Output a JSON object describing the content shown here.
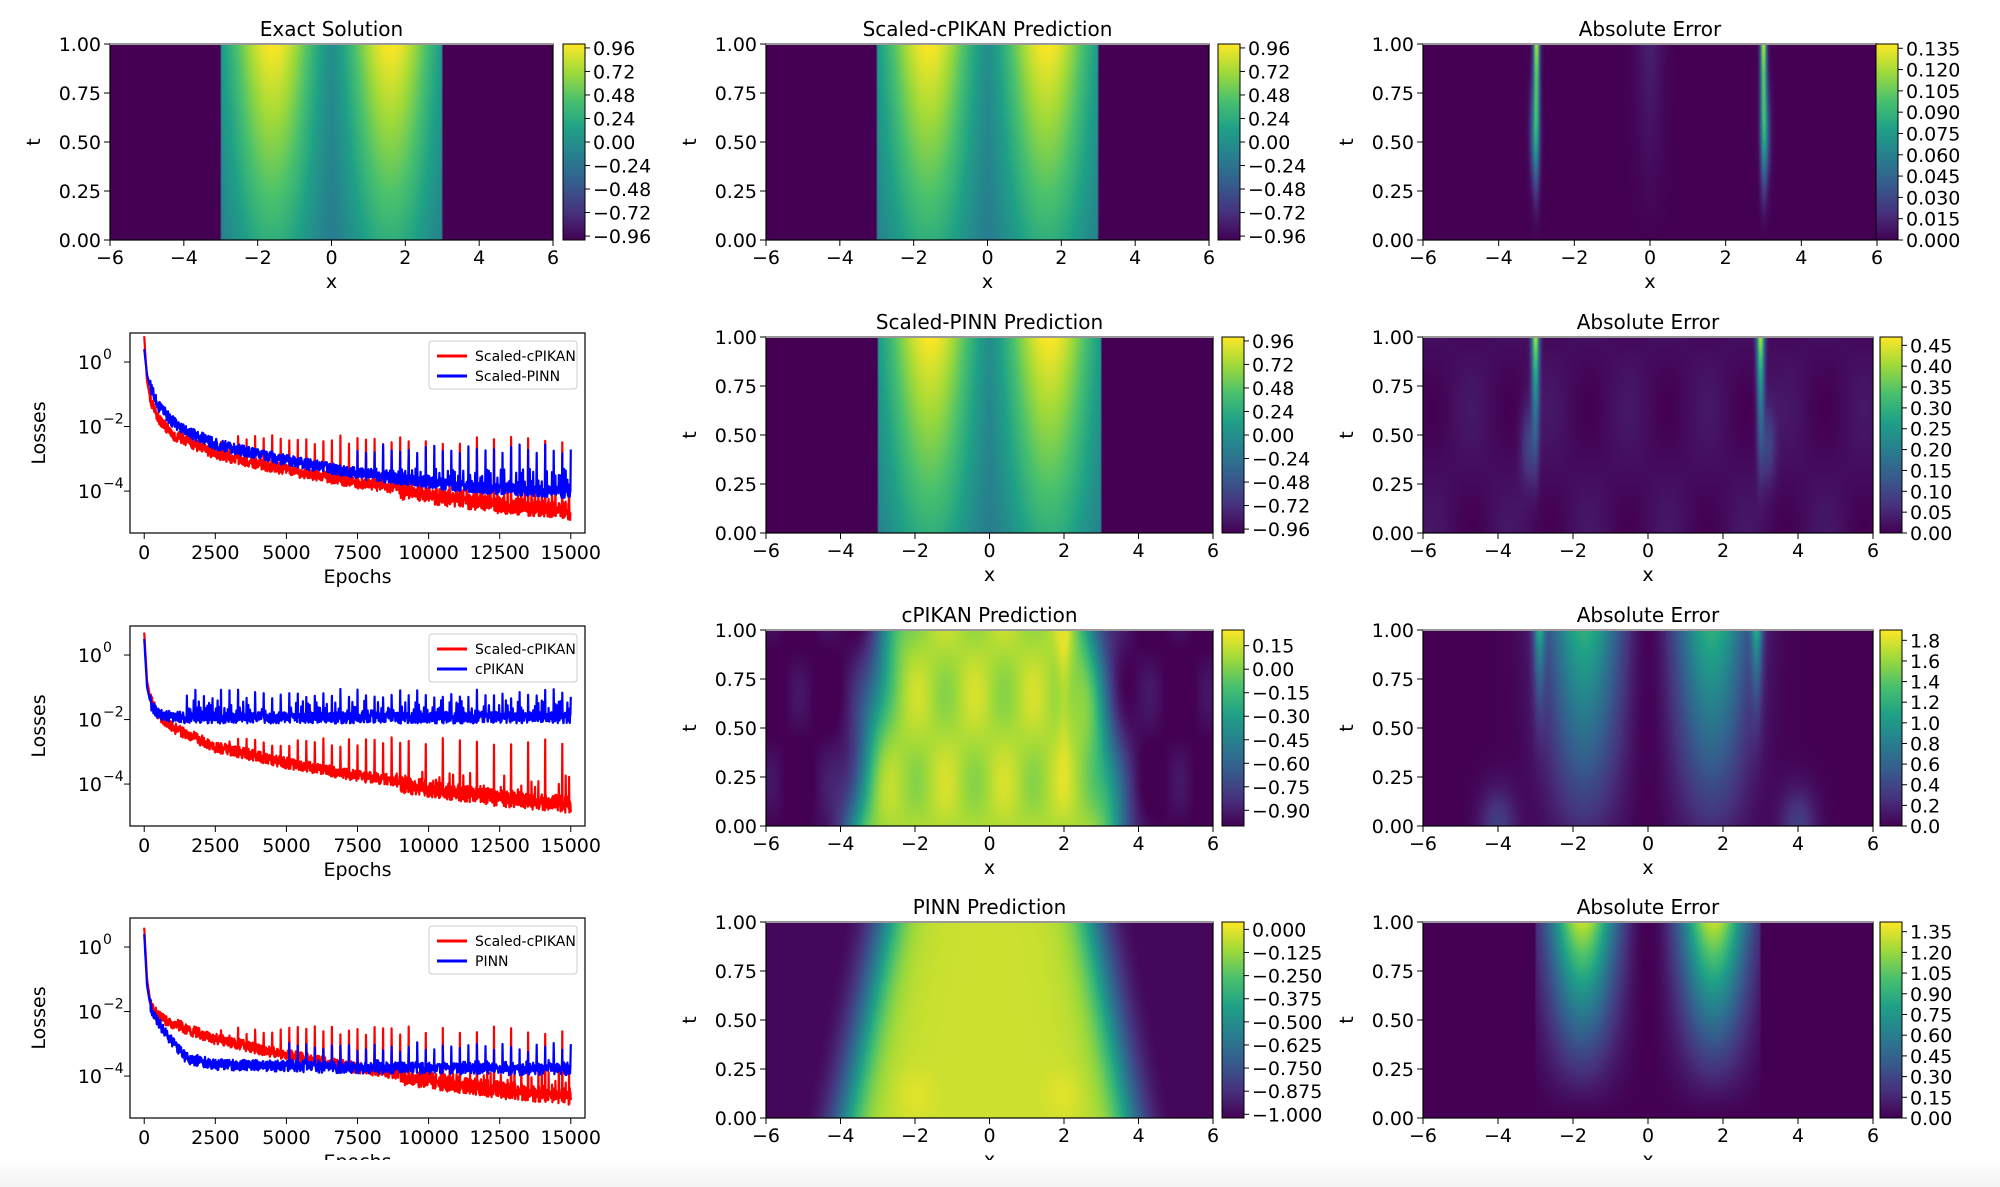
{
  "figure": {
    "colormap_stops": [
      "#440154",
      "#46327e",
      "#365c8d",
      "#277f8e",
      "#1fa187",
      "#4ac16d",
      "#a0da39",
      "#fde725"
    ]
  },
  "chart_data": [
    {
      "type": "heatmap",
      "title": "Exact Solution",
      "xlabel": "x",
      "ylabel": "t",
      "xlim": [
        -6,
        6
      ],
      "ylim": [
        0,
        1
      ],
      "xticks": [
        "−6",
        "−4",
        "−2",
        "0",
        "2",
        "4",
        "6"
      ],
      "yticks": [
        "0.00",
        "0.25",
        "0.50",
        "0.75",
        "1.00"
      ],
      "field": "solution",
      "colorbar": {
        "min": -1.0,
        "max": 1.0,
        "ticks": [
          "0.96",
          "0.72",
          "0.48",
          "0.24",
          "0.00",
          "−0.24",
          "−0.48",
          "−0.72",
          "−0.96"
        ],
        "tick_values": [
          0.96,
          0.72,
          0.48,
          0.24,
          0.0,
          -0.24,
          -0.48,
          -0.72,
          -0.96
        ]
      }
    },
    {
      "type": "heatmap",
      "title": "Scaled-cPIKAN Prediction",
      "xlabel": "x",
      "ylabel": "t",
      "xlim": [
        -6,
        6
      ],
      "ylim": [
        0,
        1
      ],
      "xticks": [
        "−6",
        "−4",
        "−2",
        "0",
        "2",
        "4",
        "6"
      ],
      "yticks": [
        "0.00",
        "0.25",
        "0.50",
        "0.75",
        "1.00"
      ],
      "field": "solution",
      "colorbar": {
        "min": -1.0,
        "max": 1.0,
        "ticks": [
          "0.96",
          "0.72",
          "0.48",
          "0.24",
          "0.00",
          "−0.24",
          "−0.48",
          "−0.72",
          "−0.96"
        ],
        "tick_values": [
          0.96,
          0.72,
          0.48,
          0.24,
          0.0,
          -0.24,
          -0.48,
          -0.72,
          -0.96
        ]
      }
    },
    {
      "type": "heatmap",
      "title": "Absolute Error",
      "xlabel": "x",
      "ylabel": "t",
      "xlim": [
        -6,
        6
      ],
      "ylim": [
        0,
        1
      ],
      "xticks": [
        "−6",
        "−4",
        "−2",
        "0",
        "2",
        "4",
        "6"
      ],
      "yticks": [
        "0.00",
        "0.25",
        "0.50",
        "0.75",
        "1.00"
      ],
      "field": "error_scaled_cpikan",
      "colorbar": {
        "min": 0.0,
        "max": 0.138,
        "ticks": [
          "0.135",
          "0.120",
          "0.105",
          "0.090",
          "0.075",
          "0.060",
          "0.045",
          "0.030",
          "0.015",
          "0.000"
        ],
        "tick_values": [
          0.135,
          0.12,
          0.105,
          0.09,
          0.075,
          0.06,
          0.045,
          0.03,
          0.015,
          0.0
        ]
      }
    },
    {
      "type": "line",
      "title": "",
      "xlabel": "Epochs",
      "ylabel": "Losses",
      "yscale": "log",
      "xlim": [
        -500,
        15500
      ],
      "ylim_log10": [
        -5.3,
        0.9
      ],
      "xticks": [
        "0",
        "2500",
        "5000",
        "7500",
        "10000",
        "12500",
        "15000"
      ],
      "xtick_values": [
        0,
        2500,
        5000,
        7500,
        10000,
        12500,
        15000
      ],
      "yticks": [
        "10",
        "10",
        "10"
      ],
      "ytick_exponents": [
        "0",
        "−2",
        "−4"
      ],
      "ytick_values_log10": [
        0,
        -2,
        -4
      ],
      "legend": "top-right",
      "series": [
        {
          "name": "Scaled-cPIKAN",
          "color": "#ff0000",
          "floor_x": [
            0,
            100,
            250,
            500,
            1000,
            1500,
            2500,
            5000,
            7500,
            10000,
            12500,
            15000
          ],
          "floor_log10": [
            0.8,
            -0.6,
            -1.3,
            -1.8,
            -2.3,
            -2.5,
            -2.9,
            -3.4,
            -3.8,
            -4.1,
            -4.4,
            -4.6
          ],
          "spike_top_log10": -2.4,
          "spike_start": 2500,
          "noise_top_log10": -3.7
        },
        {
          "name": "Scaled-PINN",
          "color": "#0000ff",
          "floor_x": [
            0,
            100,
            250,
            500,
            1000,
            1500,
            2500,
            5000,
            7500,
            10000,
            12500,
            15000
          ],
          "floor_log10": [
            0.4,
            -0.4,
            -0.9,
            -1.4,
            -1.9,
            -2.2,
            -2.6,
            -3.1,
            -3.5,
            -3.8,
            -4.0,
            -4.1
          ],
          "spike_top_log10": -2.7,
          "spike_start": 7500,
          "noise_top_log10": -3.3
        }
      ]
    },
    {
      "type": "heatmap",
      "title": "Scaled-PINN Prediction",
      "xlabel": "x",
      "ylabel": "t",
      "xlim": [
        -6,
        6
      ],
      "ylim": [
        0,
        1
      ],
      "xticks": [
        "−6",
        "−4",
        "−2",
        "0",
        "2",
        "4",
        "6"
      ],
      "yticks": [
        "0.00",
        "0.25",
        "0.50",
        "0.75",
        "1.00"
      ],
      "field": "solution",
      "colorbar": {
        "min": -1.0,
        "max": 1.0,
        "ticks": [
          "0.96",
          "0.72",
          "0.48",
          "0.24",
          "0.00",
          "−0.24",
          "−0.48",
          "−0.72",
          "−0.96"
        ],
        "tick_values": [
          0.96,
          0.72,
          0.48,
          0.24,
          0.0,
          -0.24,
          -0.48,
          -0.72,
          -0.96
        ]
      }
    },
    {
      "type": "heatmap",
      "title": "Absolute Error",
      "xlabel": "x",
      "ylabel": "t",
      "xlim": [
        -6,
        6
      ],
      "ylim": [
        0,
        1
      ],
      "xticks": [
        "−6",
        "−4",
        "−2",
        "0",
        "2",
        "4",
        "6"
      ],
      "yticks": [
        "0.00",
        "0.25",
        "0.50",
        "0.75",
        "1.00"
      ],
      "field": "error_scaled_pinn",
      "colorbar": {
        "min": 0.0,
        "max": 0.47,
        "ticks": [
          "0.45",
          "0.40",
          "0.35",
          "0.30",
          "0.25",
          "0.20",
          "0.15",
          "0.10",
          "0.05",
          "0.00"
        ],
        "tick_values": [
          0.45,
          0.4,
          0.35,
          0.3,
          0.25,
          0.2,
          0.15,
          0.1,
          0.05,
          0.0
        ]
      }
    },
    {
      "type": "line",
      "title": "",
      "xlabel": "Epochs",
      "ylabel": "Losses",
      "yscale": "log",
      "xlim": [
        -500,
        15500
      ],
      "ylim_log10": [
        -5.3,
        0.9
      ],
      "xticks": [
        "0",
        "2500",
        "5000",
        "7500",
        "10000",
        "12500",
        "15000"
      ],
      "xtick_values": [
        0,
        2500,
        5000,
        7500,
        10000,
        12500,
        15000
      ],
      "yticks": [
        "10",
        "10",
        "10"
      ],
      "ytick_exponents": [
        "0",
        "−2",
        "−4"
      ],
      "ytick_values_log10": [
        0,
        -2,
        -4
      ],
      "legend": "top-right",
      "series": [
        {
          "name": "Scaled-cPIKAN",
          "color": "#ff0000",
          "floor_x": [
            0,
            100,
            250,
            500,
            1000,
            1500,
            2500,
            5000,
            7500,
            10000,
            12500,
            15000
          ],
          "floor_log10": [
            0.7,
            -0.8,
            -1.5,
            -1.9,
            -2.3,
            -2.5,
            -2.9,
            -3.4,
            -3.8,
            -4.1,
            -4.4,
            -4.6
          ],
          "spike_top_log10": -2.7,
          "spike_start": 2500,
          "noise_top_log10": -3.6
        },
        {
          "name": "cPIKAN",
          "color": "#0000ff",
          "floor_x": [
            0,
            100,
            250,
            500,
            1000,
            1500,
            2500,
            5000,
            7500,
            10000,
            12500,
            15000
          ],
          "floor_log10": [
            0.5,
            -1.0,
            -1.6,
            -1.9,
            -1.95,
            -2.0,
            -2.0,
            -2.0,
            -2.0,
            -2.0,
            -2.0,
            -2.0
          ],
          "spike_top_log10": -1.2,
          "spike_start": 1500,
          "noise_top_log10": -1.4
        }
      ]
    },
    {
      "type": "heatmap",
      "title": "cPIKAN Prediction",
      "xlabel": "x",
      "ylabel": "t",
      "xlim": [
        -6,
        6
      ],
      "ylim": [
        0,
        1
      ],
      "xticks": [
        "−6",
        "−4",
        "−2",
        "0",
        "2",
        "4",
        "6"
      ],
      "yticks": [
        "0.00",
        "0.25",
        "0.50",
        "0.75",
        "1.00"
      ],
      "field": "pred_cpikan",
      "colorbar": {
        "min": -1.0,
        "max": 0.25,
        "ticks": [
          "0.15",
          "0.00",
          "−0.15",
          "−0.30",
          "−0.45",
          "−0.60",
          "−0.75",
          "−0.90"
        ],
        "tick_values": [
          0.15,
          0.0,
          -0.15,
          -0.3,
          -0.45,
          -0.6,
          -0.75,
          -0.9
        ]
      }
    },
    {
      "type": "heatmap",
      "title": "Absolute Error",
      "xlabel": "x",
      "ylabel": "t",
      "xlim": [
        -6,
        6
      ],
      "ylim": [
        0,
        1
      ],
      "xticks": [
        "−6",
        "−4",
        "−2",
        "0",
        "2",
        "4",
        "6"
      ],
      "yticks": [
        "0.00",
        "0.25",
        "0.50",
        "0.75",
        "1.00"
      ],
      "field": "error_cpikan",
      "colorbar": {
        "min": 0.0,
        "max": 1.9,
        "ticks": [
          "1.8",
          "1.6",
          "1.4",
          "1.2",
          "1.0",
          "0.8",
          "0.6",
          "0.4",
          "0.2",
          "0.0"
        ],
        "tick_values": [
          1.8,
          1.6,
          1.4,
          1.2,
          1.0,
          0.8,
          0.6,
          0.4,
          0.2,
          0.0
        ]
      }
    },
    {
      "type": "line",
      "title": "",
      "xlabel": "Epochs",
      "ylabel": "Losses",
      "yscale": "log",
      "xlim": [
        -500,
        15500
      ],
      "ylim_log10": [
        -5.3,
        0.9
      ],
      "xticks": [
        "0",
        "2500",
        "5000",
        "7500",
        "10000",
        "12500",
        "15000"
      ],
      "xtick_values": [
        0,
        2500,
        5000,
        7500,
        10000,
        12500,
        15000
      ],
      "yticks": [
        "10",
        "10",
        "10"
      ],
      "ytick_exponents": [
        "0",
        "−2",
        "−4"
      ],
      "ytick_values_log10": [
        0,
        -2,
        -4
      ],
      "legend": "top-right",
      "series": [
        {
          "name": "Scaled-cPIKAN",
          "color": "#ff0000",
          "floor_x": [
            0,
            100,
            250,
            500,
            1000,
            1500,
            2500,
            5000,
            7500,
            10000,
            12500,
            15000
          ],
          "floor_log10": [
            0.6,
            -1.0,
            -1.9,
            -2.2,
            -2.4,
            -2.6,
            -2.9,
            -3.4,
            -3.8,
            -4.1,
            -4.4,
            -4.6
          ],
          "spike_top_log10": -2.6,
          "spike_start": 2500,
          "noise_top_log10": -3.7
        },
        {
          "name": "PINN",
          "color": "#0000ff",
          "floor_x": [
            0,
            100,
            250,
            500,
            1000,
            1500,
            2500,
            5000,
            7500,
            10000,
            12500,
            15000
          ],
          "floor_log10": [
            0.4,
            -1.2,
            -2.0,
            -2.4,
            -3.0,
            -3.5,
            -3.7,
            -3.75,
            -3.8,
            -3.8,
            -3.85,
            -3.85
          ],
          "spike_top_log10": -3.1,
          "spike_start": 5000,
          "noise_top_log10": -3.5
        }
      ]
    },
    {
      "type": "heatmap",
      "title": "PINN Prediction",
      "xlabel": "x",
      "ylabel": "t",
      "xlim": [
        -6,
        6
      ],
      "ylim": [
        0,
        1
      ],
      "xticks": [
        "−6",
        "−4",
        "−2",
        "0",
        "2",
        "4",
        "6"
      ],
      "yticks": [
        "0.00",
        "0.25",
        "0.50",
        "0.75",
        "1.00"
      ],
      "field": "pred_pinn",
      "colorbar": {
        "min": -1.02,
        "max": 0.04,
        "ticks": [
          "0.000",
          "−0.125",
          "−0.250",
          "−0.375",
          "−0.500",
          "−0.625",
          "−0.750",
          "−0.875",
          "−1.000"
        ],
        "tick_values": [
          0.0,
          -0.125,
          -0.25,
          -0.375,
          -0.5,
          -0.625,
          -0.75,
          -0.875,
          -1.0
        ]
      }
    },
    {
      "type": "heatmap",
      "title": "Absolute Error",
      "xlabel": "x",
      "ylabel": "t",
      "xlim": [
        -6,
        6
      ],
      "ylim": [
        0,
        1
      ],
      "xticks": [
        "−6",
        "−4",
        "−2",
        "0",
        "2",
        "4",
        "6"
      ],
      "yticks": [
        "0.00",
        "0.25",
        "0.50",
        "0.75",
        "1.00"
      ],
      "field": "error_pinn",
      "colorbar": {
        "min": 0.0,
        "max": 1.42,
        "ticks": [
          "1.35",
          "1.20",
          "1.05",
          "0.90",
          "0.75",
          "0.60",
          "0.45",
          "0.30",
          "0.15",
          "0.00"
        ],
        "tick_values": [
          1.35,
          1.2,
          1.05,
          0.9,
          0.75,
          0.6,
          0.45,
          0.3,
          0.15,
          0.0
        ]
      }
    }
  ]
}
